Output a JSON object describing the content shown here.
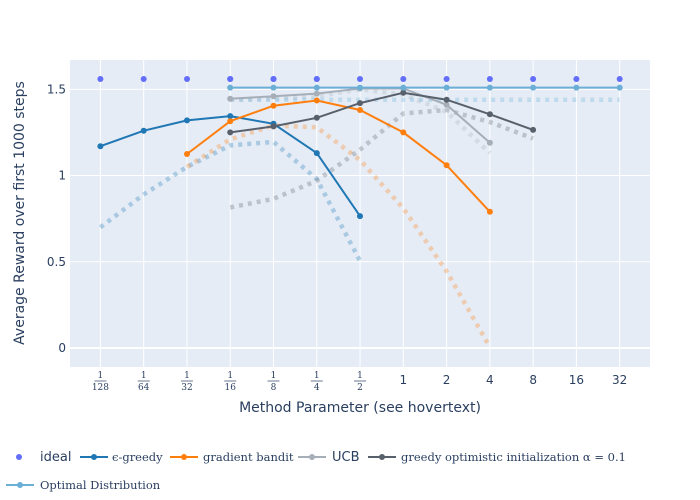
{
  "chart_data": {
    "type": "line",
    "title": "",
    "xlabel": "Method Parameter (see hovertext)",
    "ylabel": "Average Reward over first 1000 steps",
    "x_scale": "log2",
    "x_ticks": [
      {
        "value": 0.0078125,
        "num": "1",
        "den": "128"
      },
      {
        "value": 0.015625,
        "num": "1",
        "den": "64"
      },
      {
        "value": 0.03125,
        "num": "1",
        "den": "32"
      },
      {
        "value": 0.0625,
        "num": "1",
        "den": "16"
      },
      {
        "value": 0.125,
        "num": "1",
        "den": "8"
      },
      {
        "value": 0.25,
        "num": "1",
        "den": "4"
      },
      {
        "value": 0.5,
        "num": "1",
        "den": "2"
      },
      {
        "value": 1,
        "label": "1"
      },
      {
        "value": 2,
        "label": "2"
      },
      {
        "value": 4,
        "label": "4"
      },
      {
        "value": 8,
        "label": "8"
      },
      {
        "value": 16,
        "label": "16"
      },
      {
        "value": 32,
        "label": "32"
      }
    ],
    "xlim": [
      0.0048,
      52
    ],
    "ylim": [
      -0.11,
      1.67
    ],
    "y_ticks": [
      {
        "value": 0,
        "label": "0"
      },
      {
        "value": 0.5,
        "label": "0.5"
      },
      {
        "value": 1,
        "label": "1"
      },
      {
        "value": 1.5,
        "label": "1.5"
      }
    ],
    "grid": true,
    "legend_position": "bottom",
    "series": [
      {
        "name": "ideal",
        "mode": "markers",
        "color": "#636efa",
        "points": [
          [
            0.0078125,
            1.56
          ],
          [
            0.015625,
            1.56
          ],
          [
            0.03125,
            1.56
          ],
          [
            0.0625,
            1.56
          ],
          [
            0.0625,
            1.56
          ],
          [
            0.125,
            1.56
          ],
          [
            0.125,
            1.56
          ],
          [
            0.25,
            1.56
          ],
          [
            0.25,
            1.56
          ],
          [
            0.5,
            1.56
          ],
          [
            1,
            1.56
          ],
          [
            2,
            1.56
          ],
          [
            4,
            1.56
          ],
          [
            8,
            1.56
          ],
          [
            16,
            1.56
          ],
          [
            32,
            1.56
          ]
        ]
      },
      {
        "name": "ϵ-greedy",
        "mode": "lines+markers",
        "color": "#1f77b4",
        "points": [
          [
            0.0078125,
            1.17
          ],
          [
            0.015625,
            1.26
          ],
          [
            0.03125,
            1.32
          ],
          [
            0.0625,
            1.345
          ],
          [
            0.125,
            1.3
          ],
          [
            0.25,
            1.13
          ],
          [
            0.5,
            0.765
          ]
        ]
      },
      {
        "name": "gradient bandit",
        "mode": "lines+markers",
        "color": "#ff7f0e",
        "points": [
          [
            0.03125,
            1.125
          ],
          [
            0.0625,
            1.315
          ],
          [
            0.125,
            1.405
          ],
          [
            0.25,
            1.435
          ],
          [
            0.5,
            1.38
          ],
          [
            1,
            1.25
          ],
          [
            2,
            1.06
          ],
          [
            4,
            0.79
          ]
        ]
      },
      {
        "name": "UCB",
        "mode": "lines+markers",
        "color": "#a6aeb8",
        "points": [
          [
            0.0625,
            1.445
          ],
          [
            0.125,
            1.46
          ],
          [
            0.25,
            1.475
          ],
          [
            0.5,
            1.505
          ],
          [
            1,
            1.505
          ],
          [
            2,
            1.41
          ],
          [
            4,
            1.19
          ]
        ]
      },
      {
        "name": "greedy optimistic initialization α = 0.1",
        "mode": "lines+markers",
        "color": "#58606b",
        "points": [
          [
            0.0625,
            1.25
          ],
          [
            0.125,
            1.285
          ],
          [
            0.25,
            1.335
          ],
          [
            0.5,
            1.42
          ],
          [
            1,
            1.48
          ],
          [
            2,
            1.44
          ],
          [
            4,
            1.355
          ],
          [
            8,
            1.265
          ]
        ]
      },
      {
        "name": "Optimal Distribution",
        "mode": "lines+markers",
        "color": "#6baed6",
        "points": [
          [
            0.0625,
            1.51
          ],
          [
            0.125,
            1.51
          ],
          [
            0.25,
            1.51
          ],
          [
            0.5,
            1.51
          ],
          [
            1,
            1.51
          ],
          [
            2,
            1.51
          ],
          [
            4,
            1.51
          ],
          [
            8,
            1.51
          ],
          [
            16,
            1.51
          ],
          [
            32,
            1.51
          ]
        ]
      }
    ],
    "faint_series": [
      {
        "color": "#1f77b4",
        "points": [
          [
            0.0078125,
            0.7
          ],
          [
            0.015625,
            0.89
          ],
          [
            0.03125,
            1.05
          ],
          [
            0.0625,
            1.175
          ],
          [
            0.125,
            1.195
          ],
          [
            0.25,
            0.98
          ],
          [
            0.5,
            0.505
          ]
        ]
      },
      {
        "color": "#ff7f0e",
        "points": [
          [
            0.03125,
            1.05
          ],
          [
            0.0625,
            1.21
          ],
          [
            0.125,
            1.29
          ],
          [
            0.25,
            1.28
          ],
          [
            0.5,
            1.09
          ],
          [
            1,
            0.81
          ],
          [
            2,
            0.445
          ],
          [
            4,
            0.005
          ]
        ]
      },
      {
        "color": "#a6aeb8",
        "points": [
          [
            0.0625,
            1.44
          ],
          [
            0.125,
            1.445
          ],
          [
            0.25,
            1.46
          ],
          [
            0.5,
            1.5
          ],
          [
            1,
            1.47
          ],
          [
            2,
            1.37
          ],
          [
            4,
            1.13
          ]
        ]
      },
      {
        "color": "#58606b",
        "points": [
          [
            0.0625,
            0.815
          ],
          [
            0.125,
            0.865
          ],
          [
            0.25,
            0.97
          ],
          [
            0.5,
            1.15
          ],
          [
            1,
            1.36
          ],
          [
            2,
            1.38
          ],
          [
            4,
            1.31
          ],
          [
            8,
            1.215
          ]
        ]
      },
      {
        "color": "#6baed6",
        "points": [
          [
            0.0625,
            1.44
          ],
          [
            0.125,
            1.44
          ],
          [
            0.25,
            1.44
          ],
          [
            0.5,
            1.44
          ],
          [
            1,
            1.44
          ],
          [
            2,
            1.44
          ],
          [
            4,
            1.44
          ],
          [
            8,
            1.44
          ],
          [
            16,
            1.44
          ],
          [
            32,
            1.44
          ]
        ]
      }
    ]
  },
  "legend": {
    "ideal": "ideal",
    "egreedy": "ϵ-greedy",
    "gradient": "gradient bandit",
    "ucb": "UCB",
    "optimistic": "greedy optimistic initialization α = 0.1",
    "optimal": "Optimal Distribution"
  }
}
